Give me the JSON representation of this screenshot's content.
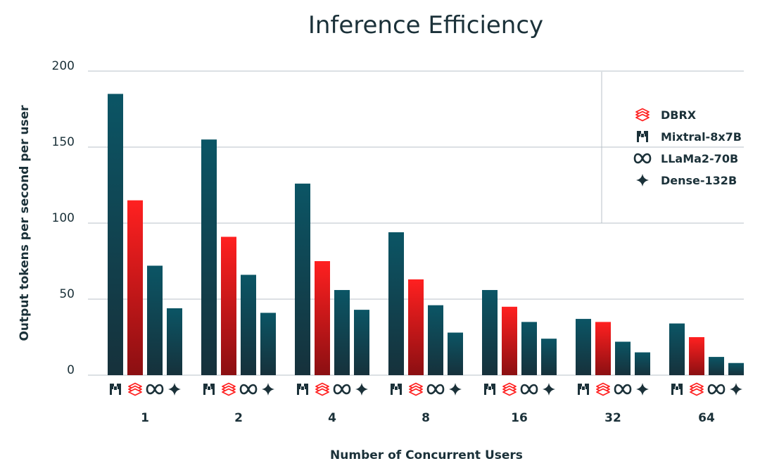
{
  "colors": {
    "text": "#1b3139",
    "grid": "#b8c2c8",
    "dark_top": "#0b5565",
    "dark_bottom": "#16313b",
    "red_top": "#ff2020",
    "red_bottom": "#8b0f12"
  },
  "chart_data": {
    "type": "bar",
    "title": "Inference Efficiency",
    "xlabel": "Number of Concurrent Users",
    "ylabel": "Output tokens per second per user",
    "ylim": [
      0,
      200
    ],
    "yticks": [
      "0",
      "50",
      "100",
      "150",
      "200"
    ],
    "grid": true,
    "legend_position": "top-right",
    "categories": [
      "1",
      "2",
      "4",
      "8",
      "16",
      "32",
      "64"
    ],
    "series": [
      {
        "name": "Mixtral-8x7B",
        "icon": "mixtral-icon",
        "palette": "dark",
        "values": [
          185,
          155,
          126,
          94,
          56,
          37,
          34
        ]
      },
      {
        "name": "DBRX",
        "icon": "dbrx-icon",
        "palette": "red",
        "values": [
          115,
          91,
          75,
          63,
          45,
          35,
          25
        ]
      },
      {
        "name": "LLaMa2-70B",
        "icon": "meta-icon",
        "palette": "dark",
        "values": [
          72,
          66,
          56,
          46,
          35,
          22,
          12
        ]
      },
      {
        "name": "Dense-132B",
        "icon": "sparkle-icon",
        "palette": "dark",
        "values": [
          44,
          41,
          43,
          28,
          24,
          15,
          8
        ]
      }
    ],
    "legend": [
      {
        "label": "DBRX",
        "icon": "dbrx-icon"
      },
      {
        "label": "Mixtral-8x7B",
        "icon": "mixtral-icon"
      },
      {
        "label": "LLaMa2-70B",
        "icon": "meta-icon"
      },
      {
        "label": "Dense-132B",
        "icon": "sparkle-icon"
      }
    ]
  }
}
